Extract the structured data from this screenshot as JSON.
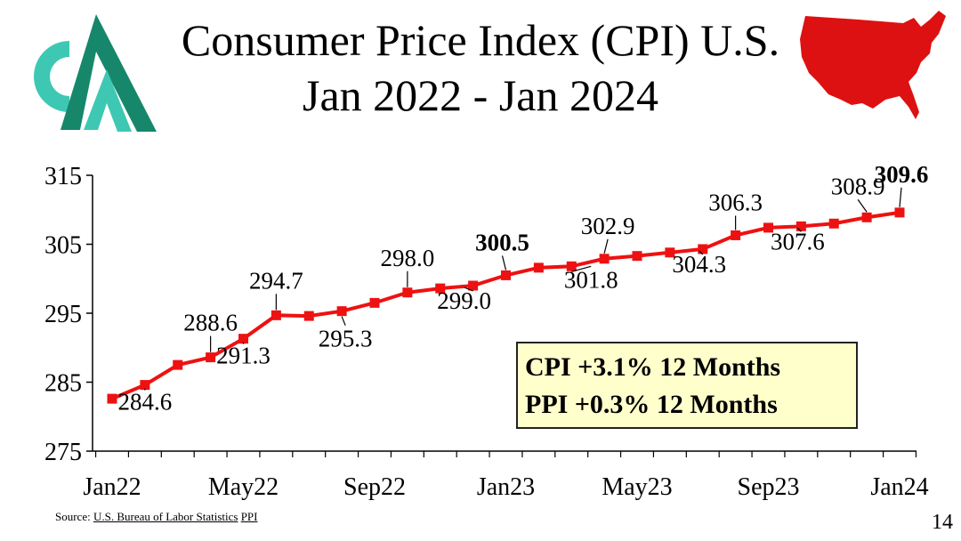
{
  "slide": {
    "title_line1": "Consumer Price Index (CPI) U.S.",
    "title_line2": "Jan 2022 - Jan 2024",
    "source_prefix": "Source:",
    "source_link1": "U.S. Bureau of Labor Statistics",
    "source_link2": "PPI",
    "page_number": "14"
  },
  "callout": {
    "line1": "CPI +3.1% 12 Months",
    "line2": "PPI +0.3% 12 Months"
  },
  "colors": {
    "series": "#ee1111",
    "map": "#dd1111",
    "logo_dark": "#17876b",
    "logo_light": "#3ec8b4",
    "callout_bg": "#ffffcc"
  },
  "chart_data": {
    "type": "line",
    "title": "Consumer Price Index (CPI) U.S. Jan 2022 - Jan 2024",
    "xlabel": "",
    "ylabel": "",
    "ylim": [
      275,
      315
    ],
    "yticks": [
      275,
      285,
      295,
      305,
      315
    ],
    "x_tick_labels": [
      "Jan22",
      "May22",
      "Sep22",
      "Jan23",
      "May23",
      "Sep23",
      "Jan24"
    ],
    "x_tick_positions": [
      0,
      4,
      8,
      12,
      16,
      20,
      24
    ],
    "categories": [
      "Jan22",
      "Feb22",
      "Mar22",
      "Apr22",
      "May22",
      "Jun22",
      "Jul22",
      "Aug22",
      "Sep22",
      "Oct22",
      "Nov22",
      "Dec22",
      "Jan23",
      "Feb23",
      "Mar23",
      "Apr23",
      "May23",
      "Jun23",
      "Jul23",
      "Aug23",
      "Sep23",
      "Oct23",
      "Nov23",
      "Dec23",
      "Jan24"
    ],
    "series": [
      {
        "name": "CPI",
        "values": [
          282.6,
          284.6,
          287.5,
          288.6,
          291.3,
          294.7,
          294.6,
          295.3,
          296.5,
          298.0,
          298.6,
          299.0,
          300.5,
          301.6,
          301.8,
          302.9,
          303.3,
          303.8,
          304.3,
          306.3,
          307.4,
          307.6,
          308.0,
          308.9,
          309.6
        ]
      }
    ],
    "annotations": [
      {
        "index": 1,
        "label": "284.6",
        "bold": false
      },
      {
        "index": 3,
        "label": "288.6",
        "bold": false
      },
      {
        "index": 4,
        "label": "291.3",
        "bold": false
      },
      {
        "index": 5,
        "label": "294.7",
        "bold": false
      },
      {
        "index": 7,
        "label": "295.3",
        "bold": false
      },
      {
        "index": 9,
        "label": "298.0",
        "bold": false
      },
      {
        "index": 11,
        "label": "299.0",
        "bold": false
      },
      {
        "index": 12,
        "label": "300.5",
        "bold": true
      },
      {
        "index": 14,
        "label": "301.8",
        "bold": false
      },
      {
        "index": 15,
        "label": "302.9",
        "bold": false
      },
      {
        "index": 18,
        "label": "304.3",
        "bold": false
      },
      {
        "index": 19,
        "label": "306.3",
        "bold": false
      },
      {
        "index": 21,
        "label": "307.6",
        "bold": false
      },
      {
        "index": 23,
        "label": "308.9",
        "bold": false
      },
      {
        "index": 24,
        "label": "309.6",
        "bold": true
      }
    ]
  }
}
